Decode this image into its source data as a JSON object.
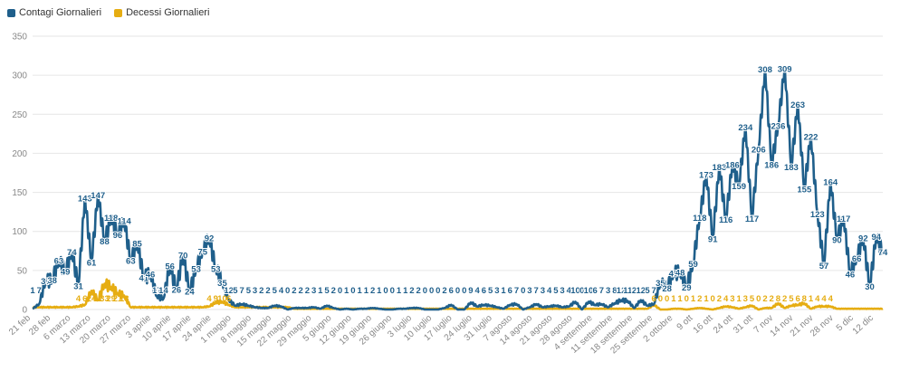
{
  "chart_data": {
    "type": "line",
    "grid": true,
    "legend_position": "top-left",
    "ylim": [
      0,
      350
    ],
    "yticks": [
      0,
      50,
      100,
      150,
      200,
      250,
      300,
      350
    ],
    "x_tick_labels": [
      "21 feb",
      "28 feb",
      "6 marzo",
      "13 marzo",
      "20 marzo",
      "27 marzo",
      "3 aprile",
      "10 aprile",
      "17 aprile",
      "24 aprile",
      "1 maggio",
      "8 maggio",
      "15 maggio",
      "22 maggio",
      "29 maggio",
      "5 giugno",
      "12 giugno",
      "19 giugno",
      "26 giugno",
      "3 luglio",
      "10 luglio",
      "17 luglio",
      "24 luglio",
      "31 luglio",
      "7 agosto",
      "14 agosto",
      "21 agosto",
      "28 agosto",
      "4 settembre",
      "11 settembre",
      "18 settembre",
      "25 settembre",
      "2 ottobre",
      "9 ott",
      "16 ott",
      "24 ott",
      "31 ott",
      "7 nov",
      "14 nov",
      "21 nov",
      "28 nov",
      "5 dic",
      "12 dic"
    ],
    "series": [
      {
        "name": "Contagi Giornalieri",
        "color": "#1f5f8b",
        "points": [
          [
            0,
            1
          ],
          [
            1,
            7
          ],
          [
            2,
            37
          ],
          [
            3,
            38
          ],
          [
            4,
            63
          ],
          [
            5,
            49
          ],
          [
            6,
            74
          ],
          [
            7,
            31
          ],
          [
            8,
            143
          ],
          [
            9,
            61
          ],
          [
            10,
            147
          ],
          [
            11,
            88
          ],
          [
            12,
            118
          ],
          [
            13,
            96
          ],
          [
            14,
            114
          ],
          [
            15,
            63
          ],
          [
            16,
            85
          ],
          [
            17,
            41
          ],
          [
            18,
            46
          ],
          [
            19,
            17
          ],
          [
            20,
            14
          ],
          [
            21,
            56
          ],
          [
            22,
            26
          ],
          [
            23,
            70
          ],
          [
            24,
            24
          ],
          [
            25,
            53
          ],
          [
            26,
            75
          ],
          [
            27,
            92
          ],
          [
            28,
            53
          ],
          [
            29,
            35
          ],
          [
            30,
            12
          ],
          [
            31,
            5
          ],
          [
            32,
            7
          ],
          [
            33,
            5
          ],
          [
            34,
            3
          ],
          [
            35,
            2
          ],
          [
            36,
            2
          ],
          [
            37,
            5
          ],
          [
            38,
            4
          ],
          [
            39,
            0
          ],
          [
            40,
            2
          ],
          [
            41,
            2
          ],
          [
            42,
            2
          ],
          [
            43,
            3
          ],
          [
            44,
            1
          ],
          [
            45,
            5
          ],
          [
            46,
            2
          ],
          [
            47,
            0
          ],
          [
            48,
            1
          ],
          [
            49,
            0
          ],
          [
            50,
            1
          ],
          [
            51,
            1
          ],
          [
            52,
            2
          ],
          [
            53,
            1
          ],
          [
            54,
            0
          ],
          [
            55,
            0
          ],
          [
            56,
            1
          ],
          [
            57,
            1
          ],
          [
            58,
            2
          ],
          [
            59,
            2
          ],
          [
            60,
            0
          ],
          [
            61,
            0
          ],
          [
            62,
            0
          ],
          [
            63,
            2
          ],
          [
            64,
            6
          ],
          [
            65,
            0
          ],
          [
            66,
            0
          ],
          [
            67,
            9
          ],
          [
            68,
            4
          ],
          [
            69,
            6
          ],
          [
            70,
            5
          ],
          [
            71,
            3
          ],
          [
            72,
            1
          ],
          [
            73,
            6
          ],
          [
            74,
            7
          ],
          [
            75,
            0
          ],
          [
            76,
            3
          ],
          [
            77,
            7
          ],
          [
            78,
            3
          ],
          [
            79,
            4
          ],
          [
            80,
            5
          ],
          [
            81,
            3
          ],
          [
            82,
            4
          ],
          [
            83,
            10
          ],
          [
            84,
            0
          ],
          [
            85,
            10
          ],
          [
            86,
            6
          ],
          [
            87,
            7
          ],
          [
            88,
            3
          ],
          [
            89,
            8
          ],
          [
            90,
            12
          ],
          [
            91,
            11
          ],
          [
            92,
            2
          ],
          [
            93,
            12
          ],
          [
            94,
            5
          ],
          [
            95,
            7
          ],
          [
            96,
            35
          ],
          [
            97,
            28
          ],
          [
            98,
            47
          ],
          [
            99,
            48
          ],
          [
            100,
            29
          ],
          [
            101,
            59
          ],
          [
            102,
            118
          ],
          [
            103,
            173
          ],
          [
            104,
            91
          ],
          [
            105,
            183
          ],
          [
            106,
            116
          ],
          [
            107,
            186
          ],
          [
            108,
            159
          ],
          [
            109,
            234
          ],
          [
            110,
            117
          ],
          [
            111,
            206
          ],
          [
            112,
            308
          ],
          [
            113,
            186
          ],
          [
            114,
            236
          ],
          [
            115,
            309
          ],
          [
            116,
            183
          ],
          [
            117,
            263
          ],
          [
            118,
            155
          ],
          [
            119,
            222
          ],
          [
            120,
            123
          ],
          [
            121,
            57
          ],
          [
            122,
            164
          ],
          [
            123,
            90
          ],
          [
            124,
            117
          ],
          [
            125,
            46
          ],
          [
            126,
            66
          ],
          [
            127,
            92
          ],
          [
            128,
            30
          ],
          [
            129,
            94
          ],
          [
            130,
            74
          ]
        ]
      },
      {
        "name": "Decessi Giornalieri",
        "color": "#e6ad12",
        "points": [
          [
            7,
            4
          ],
          [
            8,
            6
          ],
          [
            9,
            24
          ],
          [
            10,
            12
          ],
          [
            11,
            33
          ],
          [
            12,
            29
          ],
          [
            13,
            21
          ],
          [
            14,
            18
          ],
          [
            27,
            4
          ],
          [
            28,
            9
          ],
          [
            29,
            10
          ],
          [
            30,
            6
          ],
          [
            95,
            6
          ],
          [
            96,
            0
          ],
          [
            97,
            0
          ],
          [
            98,
            1
          ],
          [
            99,
            1
          ],
          [
            100,
            0
          ],
          [
            101,
            1
          ],
          [
            102,
            2
          ],
          [
            103,
            1
          ],
          [
            104,
            0
          ],
          [
            105,
            2
          ],
          [
            106,
            4
          ],
          [
            107,
            3
          ],
          [
            108,
            1
          ],
          [
            109,
            3
          ],
          [
            110,
            5
          ],
          [
            111,
            0
          ],
          [
            112,
            2
          ],
          [
            113,
            2
          ],
          [
            114,
            8
          ],
          [
            115,
            2
          ],
          [
            116,
            5
          ],
          [
            117,
            6
          ],
          [
            118,
            8
          ],
          [
            119,
            1
          ],
          [
            120,
            4
          ],
          [
            121,
            4
          ],
          [
            122,
            4
          ]
        ]
      }
    ],
    "labels": {
      "contagi": [
        [
          0,
          "1"
        ],
        [
          1,
          "7"
        ],
        [
          2,
          "37"
        ],
        [
          3,
          "38"
        ],
        [
          4,
          "63"
        ],
        [
          5,
          "49"
        ],
        [
          6,
          "74"
        ],
        [
          7,
          "31"
        ],
        [
          8,
          "143"
        ],
        [
          9,
          "61"
        ],
        [
          10,
          "147"
        ],
        [
          11,
          "88"
        ],
        [
          12,
          "118"
        ],
        [
          13,
          "96"
        ],
        [
          14,
          "114"
        ],
        [
          15,
          "63"
        ],
        [
          16,
          "85"
        ],
        [
          17,
          "41"
        ],
        [
          18,
          "46"
        ],
        [
          19,
          "17"
        ],
        [
          20,
          "14"
        ],
        [
          21,
          "56"
        ],
        [
          22,
          "26"
        ],
        [
          23,
          "70"
        ],
        [
          24,
          "24"
        ],
        [
          25,
          "53"
        ],
        [
          26,
          "75"
        ],
        [
          27,
          "92"
        ],
        [
          28,
          "53"
        ],
        [
          29,
          "35"
        ],
        [
          30,
          "12"
        ],
        [
          31,
          "5"
        ],
        [
          32,
          "7"
        ],
        [
          33,
          "5"
        ],
        [
          34,
          "3"
        ],
        [
          35,
          "2"
        ],
        [
          36,
          "2"
        ],
        [
          37,
          "5"
        ],
        [
          38,
          "4"
        ],
        [
          39,
          "0"
        ],
        [
          40,
          "2"
        ],
        [
          41,
          "2"
        ],
        [
          42,
          "2"
        ],
        [
          43,
          "3"
        ],
        [
          44,
          "1"
        ],
        [
          45,
          "5"
        ],
        [
          46,
          "2"
        ],
        [
          47,
          "0"
        ],
        [
          48,
          "1"
        ],
        [
          49,
          "0"
        ],
        [
          50,
          "1"
        ],
        [
          51,
          "1"
        ],
        [
          52,
          "2"
        ],
        [
          53,
          "1"
        ],
        [
          54,
          "0"
        ],
        [
          55,
          "0"
        ],
        [
          56,
          "1"
        ],
        [
          57,
          "1"
        ],
        [
          58,
          "2"
        ],
        [
          59,
          "2"
        ],
        [
          60,
          "0"
        ],
        [
          61,
          "0"
        ],
        [
          62,
          "0"
        ],
        [
          63,
          "2"
        ],
        [
          64,
          "6"
        ],
        [
          65,
          "0"
        ],
        [
          66,
          "0"
        ],
        [
          67,
          "9"
        ],
        [
          68,
          "4"
        ],
        [
          69,
          "6"
        ],
        [
          70,
          "5"
        ],
        [
          71,
          "3"
        ],
        [
          72,
          "1"
        ],
        [
          73,
          "6"
        ],
        [
          74,
          "7"
        ],
        [
          75,
          "0"
        ],
        [
          76,
          "3"
        ],
        [
          77,
          "7"
        ],
        [
          78,
          "3"
        ],
        [
          79,
          "4"
        ],
        [
          80,
          "5"
        ],
        [
          81,
          "3"
        ],
        [
          82,
          "4"
        ],
        [
          83,
          "10"
        ],
        [
          84,
          "0"
        ],
        [
          85,
          "10"
        ],
        [
          86,
          "6"
        ],
        [
          87,
          "7"
        ],
        [
          88,
          "3"
        ],
        [
          89,
          "8"
        ],
        [
          90,
          "12"
        ],
        [
          91,
          "11"
        ],
        [
          92,
          "2"
        ],
        [
          93,
          "12"
        ],
        [
          94,
          "5"
        ],
        [
          95,
          "7"
        ],
        [
          96,
          "35"
        ],
        [
          97,
          "28"
        ],
        [
          98,
          "47"
        ],
        [
          99,
          "48"
        ],
        [
          100,
          "29"
        ],
        [
          101,
          "59"
        ],
        [
          102,
          "118"
        ],
        [
          103,
          "173"
        ],
        [
          104,
          "91"
        ],
        [
          105,
          "183"
        ],
        [
          106,
          "116"
        ],
        [
          107,
          "186"
        ],
        [
          108,
          "159"
        ],
        [
          109,
          "234"
        ],
        [
          110,
          "117"
        ],
        [
          111,
          "206"
        ],
        [
          112,
          "308"
        ],
        [
          113,
          "186"
        ],
        [
          114,
          "236"
        ],
        [
          115,
          "309"
        ],
        [
          116,
          "183"
        ],
        [
          117,
          "263"
        ],
        [
          118,
          "155"
        ],
        [
          119,
          "222"
        ],
        [
          120,
          "123"
        ],
        [
          121,
          "57"
        ],
        [
          122,
          "164"
        ],
        [
          123,
          "90"
        ],
        [
          124,
          "117"
        ],
        [
          125,
          "46"
        ],
        [
          126,
          "66"
        ],
        [
          127,
          "92"
        ],
        [
          128,
          "30"
        ],
        [
          129,
          "94"
        ],
        [
          130,
          "74"
        ]
      ],
      "decessi": [
        [
          7,
          "4"
        ],
        [
          8,
          "6"
        ],
        [
          9,
          "24"
        ],
        [
          10,
          "12"
        ],
        [
          11,
          "33"
        ],
        [
          12,
          "29"
        ],
        [
          13,
          "21"
        ],
        [
          14,
          "18"
        ],
        [
          27,
          "4"
        ],
        [
          28,
          "9"
        ],
        [
          29,
          "10"
        ],
        [
          30,
          "6"
        ],
        [
          95,
          "6"
        ],
        [
          96,
          "0"
        ],
        [
          97,
          "0"
        ],
        [
          98,
          "1"
        ],
        [
          99,
          "1"
        ],
        [
          100,
          "0"
        ],
        [
          101,
          "1"
        ],
        [
          102,
          "2"
        ],
        [
          103,
          "1"
        ],
        [
          104,
          "0"
        ],
        [
          105,
          "2"
        ],
        [
          106,
          "4"
        ],
        [
          107,
          "3"
        ],
        [
          108,
          "1"
        ],
        [
          109,
          "3"
        ],
        [
          110,
          "5"
        ],
        [
          111,
          "0"
        ],
        [
          112,
          "2"
        ],
        [
          113,
          "2"
        ],
        [
          114,
          "8"
        ],
        [
          115,
          "2"
        ],
        [
          116,
          "5"
        ],
        [
          117,
          "6"
        ],
        [
          118,
          "8"
        ],
        [
          119,
          "1"
        ],
        [
          120,
          "4"
        ],
        [
          121,
          "4"
        ],
        [
          122,
          "4"
        ]
      ]
    }
  }
}
